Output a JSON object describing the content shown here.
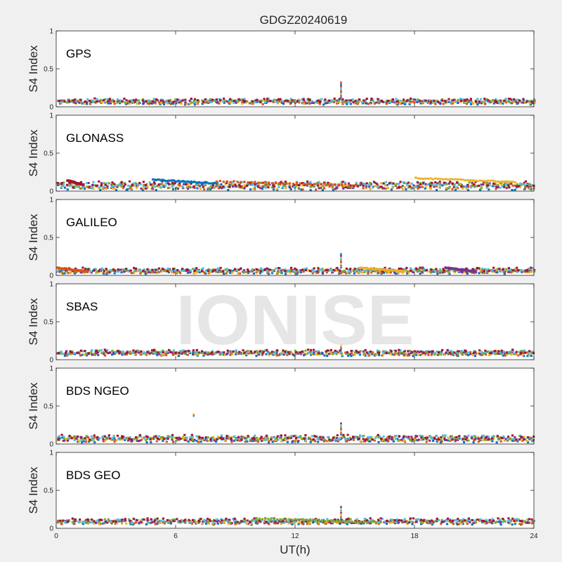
{
  "chart_data": {
    "type": "scatter",
    "title": "GDGZ20240619",
    "xlabel": "UT(h)",
    "ylabel": "S4 Index",
    "xlim": [
      0,
      24
    ],
    "ylim": [
      0,
      1
    ],
    "x_ticks": [
      "0",
      "6",
      "12",
      "18",
      "24"
    ],
    "y_ticks": [
      "0",
      "0.5",
      "1"
    ],
    "watermark": "IONISE",
    "grid": false,
    "series_colors": [
      "#0072BD",
      "#D95319",
      "#EDB120",
      "#7E2F8E",
      "#77AC30",
      "#4DBEEE",
      "#A2142F"
    ],
    "panels": [
      {
        "label": "GPS",
        "baseline": 0.07,
        "spread": 0.03,
        "features": [
          {
            "x": 14.3,
            "y_from": 0.12,
            "y_to": 0.32,
            "type": "spike"
          }
        ]
      },
      {
        "label": "GLONASS",
        "baseline": 0.07,
        "spread": 0.05,
        "features": [
          {
            "x_from": 0.5,
            "x_to": 1.2,
            "y": 0.14,
            "type": "arc"
          },
          {
            "x_from": 4.8,
            "x_to": 8.0,
            "y": 0.15,
            "type": "arc"
          },
          {
            "x_from": 8.0,
            "x_to": 15.0,
            "y": 0.13,
            "type": "arc"
          },
          {
            "x_from": 18.0,
            "x_to": 23.0,
            "y": 0.17,
            "type": "arc"
          }
        ]
      },
      {
        "label": "GALILEO",
        "baseline": 0.06,
        "spread": 0.03,
        "features": [
          {
            "x": 14.3,
            "y_from": 0.1,
            "y_to": 0.28,
            "type": "spike"
          },
          {
            "x_from": 0.0,
            "x_to": 1.5,
            "y": 0.1,
            "type": "arc"
          },
          {
            "x_from": 15.2,
            "x_to": 17.5,
            "y": 0.1,
            "type": "arc"
          },
          {
            "x_from": 19.5,
            "x_to": 21.0,
            "y": 0.1,
            "type": "arc"
          }
        ]
      },
      {
        "label": "SBAS",
        "baseline": 0.09,
        "spread": 0.03,
        "features": [
          {
            "x": 14.3,
            "y_from": 0.13,
            "y_to": 0.18,
            "type": "spike"
          }
        ]
      },
      {
        "label": "BDS NGEO",
        "baseline": 0.07,
        "spread": 0.04,
        "features": [
          {
            "x": 6.9,
            "y_from": 0.37,
            "y_to": 0.39,
            "type": "spike"
          },
          {
            "x": 14.3,
            "y_from": 0.12,
            "y_to": 0.27,
            "type": "spike"
          }
        ]
      },
      {
        "label": "BDS GEO",
        "baseline": 0.09,
        "spread": 0.03,
        "features": [
          {
            "x": 14.3,
            "y_from": 0.12,
            "y_to": 0.28,
            "type": "spike"
          },
          {
            "x_from": 10.0,
            "x_to": 16.0,
            "y": 0.13,
            "type": "arc"
          }
        ]
      }
    ]
  }
}
